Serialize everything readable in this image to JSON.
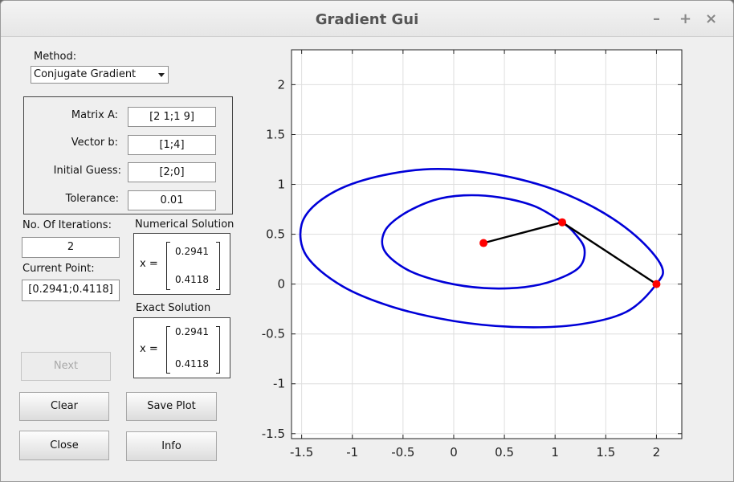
{
  "window": {
    "title": "Gradient Gui",
    "controls": [
      "–",
      "+",
      "×"
    ]
  },
  "method": {
    "label": "Method:",
    "selected": "Conjugate Gradient"
  },
  "inputs": {
    "matrix_a": {
      "label": "Matrix A:",
      "value": "[2 1;1 9]"
    },
    "vector_b": {
      "label": "Vector b:",
      "value": "[1;4]"
    },
    "initial_guess": {
      "label": "Initial Guess:",
      "value": "[2;0]"
    },
    "tolerance": {
      "label": "Tolerance:",
      "value": "0.01"
    }
  },
  "iterations": {
    "label": "No. Of Iterations:",
    "value": "2"
  },
  "current_point": {
    "label": "Current Point:",
    "value": "[0.2941;0.4118]"
  },
  "numerical_solution": {
    "label": "Numerical Solution",
    "x_label": "x =",
    "values": [
      "0.2941",
      "0.4118"
    ]
  },
  "exact_solution": {
    "label": "Exact Solution",
    "x_label": "x =",
    "values": [
      "0.2941",
      "0.4118"
    ]
  },
  "buttons": {
    "next": "Next",
    "clear": "Clear",
    "save_plot": "Save Plot",
    "close": "Close",
    "info": "Info"
  },
  "colors": {
    "contour": "#0000d8",
    "path": "#000000",
    "points": "#ff0000",
    "grid": "#dedede"
  },
  "chart_data": {
    "type": "line",
    "title": "",
    "xlabel": "",
    "ylabel": "",
    "xlim": [
      -1.6,
      2.25
    ],
    "ylim": [
      -1.55,
      2.35
    ],
    "grid": true,
    "xticks": [
      -1.5,
      -1,
      -0.5,
      0,
      0.5,
      1,
      1.5,
      2
    ],
    "yticks": [
      -1.5,
      -1,
      -0.5,
      0,
      0.5,
      1,
      1.5,
      2
    ],
    "xtick_labels": [
      "-1.5",
      "-1",
      "-0.5",
      "0",
      "0.5",
      "1",
      "1.5",
      "2"
    ],
    "ytick_labels": [
      "-1.5",
      "-1",
      "-0.5",
      "0",
      "0.5",
      "1",
      "1.5",
      "2"
    ],
    "series": [
      {
        "type": "contour",
        "points": [
          [
            2.0,
            0.0
          ],
          [
            1.7,
            -0.28
          ],
          [
            1.2,
            -0.41
          ],
          [
            0.6,
            -0.43
          ],
          [
            0.0,
            -0.37
          ],
          [
            -0.6,
            -0.23
          ],
          [
            -1.1,
            -0.02
          ],
          [
            -1.45,
            0.28
          ],
          [
            -1.5,
            0.6
          ],
          [
            -1.3,
            0.85
          ],
          [
            -0.9,
            1.04
          ],
          [
            -0.3,
            1.15
          ],
          [
            0.3,
            1.12
          ],
          [
            0.9,
            0.98
          ],
          [
            1.4,
            0.76
          ],
          [
            1.8,
            0.48
          ],
          [
            2.05,
            0.18
          ],
          [
            2.0,
            0.0
          ]
        ]
      },
      {
        "type": "contour",
        "points": [
          [
            1.07,
            0.62
          ],
          [
            1.2,
            0.5
          ],
          [
            1.29,
            0.35
          ],
          [
            1.24,
            0.17
          ],
          [
            1.0,
            0.04
          ],
          [
            0.7,
            -0.03
          ],
          [
            0.3,
            -0.04
          ],
          [
            -0.1,
            0.02
          ],
          [
            -0.45,
            0.14
          ],
          [
            -0.68,
            0.33
          ],
          [
            -0.68,
            0.53
          ],
          [
            -0.5,
            0.7
          ],
          [
            -0.2,
            0.84
          ],
          [
            0.1,
            0.89
          ],
          [
            0.45,
            0.87
          ],
          [
            0.8,
            0.78
          ],
          [
            1.07,
            0.62
          ]
        ]
      },
      {
        "type": "path",
        "points": [
          [
            2.0,
            0.0
          ],
          [
            1.07,
            0.62
          ],
          [
            0.2941,
            0.4118
          ]
        ]
      }
    ],
    "markers": [
      [
        2.0,
        0.0
      ],
      [
        1.07,
        0.62
      ],
      [
        0.2941,
        0.4118
      ]
    ]
  }
}
